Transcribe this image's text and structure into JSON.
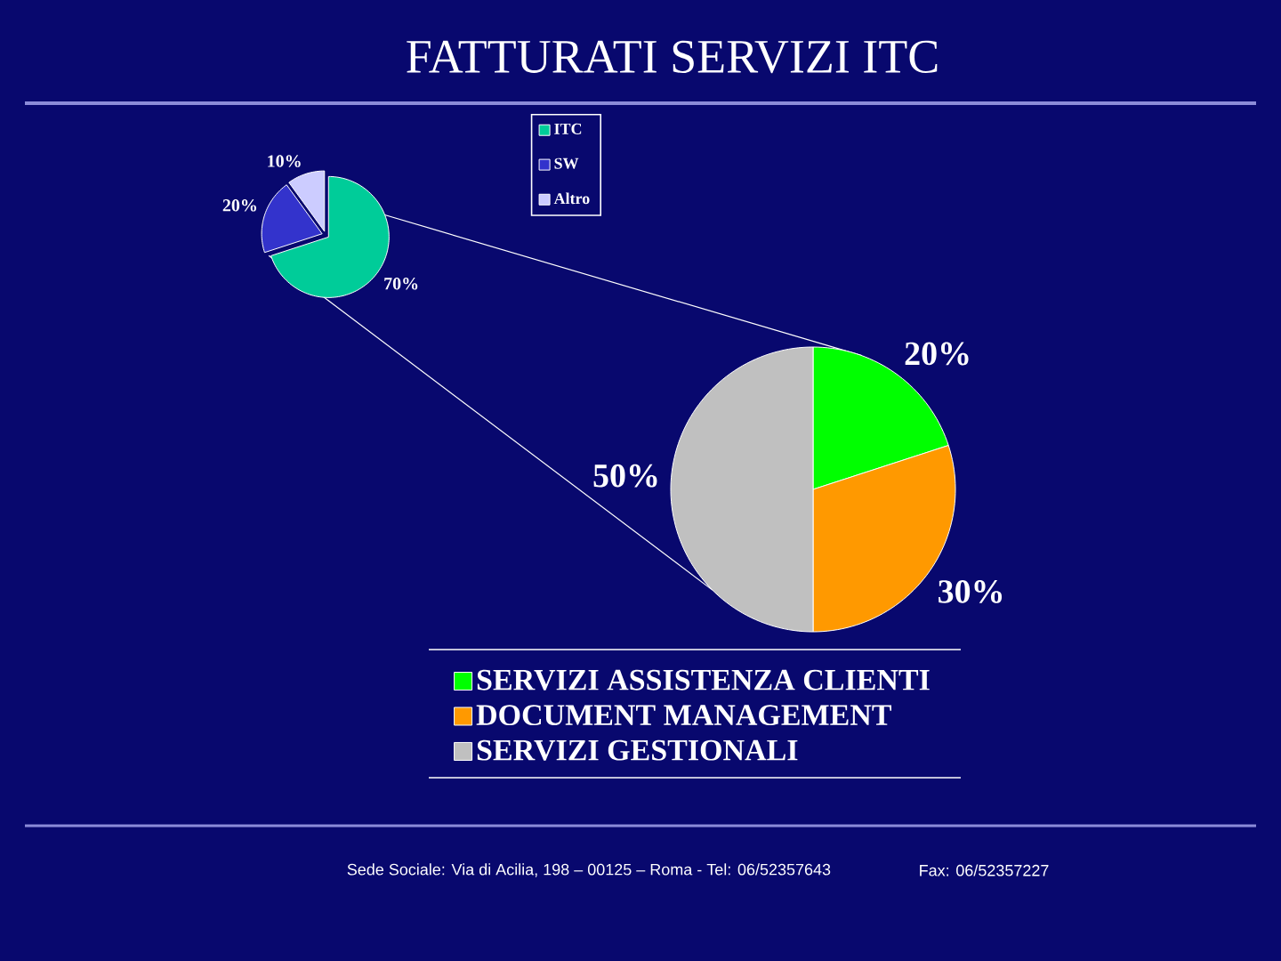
{
  "chart_data": [
    {
      "type": "pie",
      "title": "FATTURATI SERVIZI ITC",
      "categories": [
        "ITC",
        "SW",
        "Altro"
      ],
      "values": [
        70,
        20,
        10
      ],
      "colors": [
        "#00cc99",
        "#3333cc",
        "#ccccff"
      ],
      "value_labels": [
        "70%",
        "20%",
        "10%"
      ],
      "legend": "top right"
    },
    {
      "type": "pie",
      "categories": [
        "SERVIZI ASSISTENZA CLIENTI",
        "DOCUMENT MANAGEMENT",
        "SERVIZI GESTIONALI"
      ],
      "values": [
        20,
        30,
        50
      ],
      "colors": [
        "#00ff00",
        "#ff9900",
        "#c0c0c0"
      ],
      "value_labels": [
        "20%",
        "30%",
        "50%"
      ],
      "legend": "bottom",
      "annotations": [
        "Sede Sociale: Via di Acilia, 198 – 00125 – Roma - Tel: 06/52357643",
        "Fax: 06/52357227"
      ]
    }
  ]
}
